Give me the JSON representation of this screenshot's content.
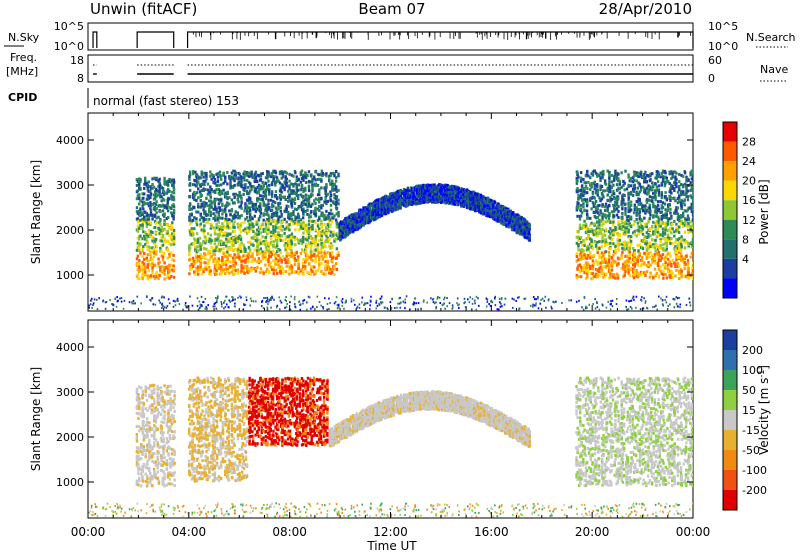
{
  "header": {
    "radar": "Unwin (fitACF)",
    "beam": "Beam 07",
    "date": "28/Apr/2010"
  },
  "strips": {
    "nsky_label": "N.Sky",
    "nsky_ticks": [
      "10^5",
      "10^0"
    ],
    "nsearch_label": "N.Search",
    "nsearch_ticks": [
      "10^5",
      "10^0"
    ],
    "freq_label_1": "Freq.",
    "freq_label_2": "[MHz]",
    "freq_ticks": [
      "18",
      "8"
    ],
    "nave_label": "Nave",
    "nave_ticks": [
      "60",
      "0"
    ],
    "cpid_label": "CPID",
    "cpid_text": "normal (fast stereo) 153"
  },
  "chart_data": [
    {
      "type": "heatmap",
      "title": "",
      "ylabel": "Slant Range [km]",
      "xlabel": "",
      "x_range_hours": [
        0,
        24
      ],
      "ylim": [
        200,
        4600
      ],
      "ytick_values": [
        1000,
        2000,
        3000,
        4000
      ],
      "ytick_labels": [
        "1000",
        "2000",
        "3000",
        "4000"
      ],
      "colorbar": {
        "label": "Power [dB]",
        "tick_labels": [
          "28",
          "24",
          "20",
          "16",
          "12",
          "8",
          "4"
        ],
        "colors": [
          "#e60000",
          "#ff5a00",
          "#ffa000",
          "#ffd700",
          "#8ec832",
          "#2e8b57",
          "#226f6f",
          "#1a3fa0",
          "#0000ff"
        ]
      },
      "observations": [
        {
          "segment_hours": [
            1.85,
            3.4
          ],
          "range_km": [
            900,
            3150
          ],
          "note": "mixed scatter"
        },
        {
          "segment_hours": [
            3.95,
            9.9
          ],
          "range_km": [
            1000,
            3300
          ],
          "note": "strong echoes near 1000-1800 km"
        },
        {
          "segment_hours": [
            9.9,
            17.5
          ],
          "range_km": [
            1600,
            2950
          ],
          "note": "arc-shaped weak echoes"
        },
        {
          "segment_hours": [
            19.3,
            24
          ],
          "range_km": [
            900,
            3300
          ],
          "note": "strong echoes near 1000-1700 km"
        }
      ]
    },
    {
      "type": "heatmap",
      "title": "",
      "ylabel": "Slant Range [km]",
      "xlabel": "Time UT",
      "x_range_hours": [
        0,
        24
      ],
      "xtick_labels": [
        "00:00",
        "04:00",
        "08:00",
        "12:00",
        "16:00",
        "20:00",
        "00:00"
      ],
      "ylim": [
        200,
        4600
      ],
      "ytick_values": [
        1000,
        2000,
        3000,
        4000
      ],
      "ytick_labels": [
        "1000",
        "2000",
        "3000",
        "4000"
      ],
      "colorbar": {
        "label": "Velocity [m s^-1]",
        "tick_labels": [
          "200",
          "100",
          "50",
          "15",
          "-15",
          "-50",
          "-100",
          "-200"
        ],
        "colors": [
          "#1a3fa0",
          "#2e6fb0",
          "#3aa55a",
          "#8ed040",
          "#c8c8c8",
          "#e8b030",
          "#f08a10",
          "#f05010",
          "#e00000"
        ]
      },
      "observations": [
        {
          "segment_hours": [
            1.85,
            3.4
          ],
          "range_km": [
            900,
            3150
          ],
          "note": "mostly low velocity (grey)"
        },
        {
          "segment_hours": [
            3.95,
            6.3
          ],
          "range_km": [
            1000,
            3300
          ],
          "note": "orange negative velocities"
        },
        {
          "segment_hours": [
            6.3,
            9.5
          ],
          "range_km": [
            1800,
            3300
          ],
          "note": "strong negative velocities (red)"
        },
        {
          "segment_hours": [
            9.5,
            17.5
          ],
          "range_km": [
            1600,
            2950
          ],
          "note": "low velocity arc (grey)"
        },
        {
          "segment_hours": [
            19.3,
            24
          ],
          "range_km": [
            900,
            3300
          ],
          "note": "low velocity with positive (green) patches"
        }
      ]
    }
  ]
}
